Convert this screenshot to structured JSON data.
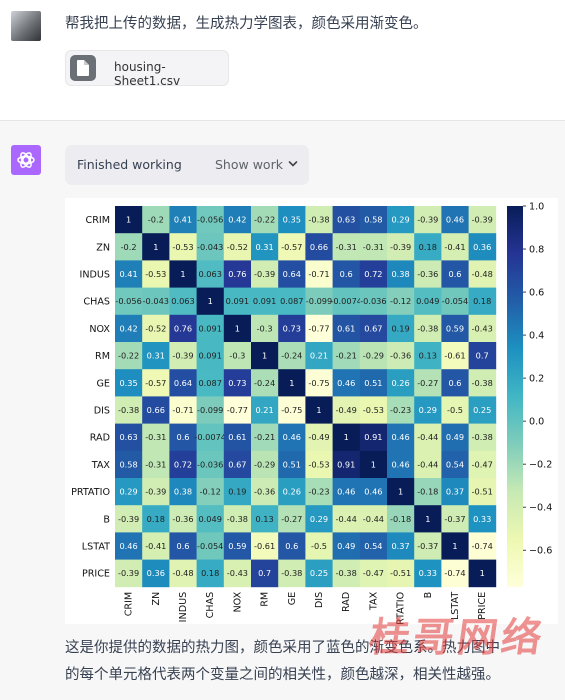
{
  "user": {
    "message": "帮我把上传的数据，生成热力学图表，颜色采用渐变色。",
    "file_name": "housing-Sheet1.csv"
  },
  "assistant": {
    "status": "Finished working",
    "show_work_label": "Show work",
    "reply_line1": "这是你提供的数据的热力图，颜色采用了蓝色的渐变色系。热力图中",
    "reply_line2": "的每个单元格代表两个变量之间的相关性，颜色越深，相关性越强。"
  },
  "watermark": "桂哥网络",
  "chart_data": {
    "type": "heatmap",
    "variables": [
      "CRIM",
      "ZN",
      "INDUS",
      "CHAS",
      "NOX",
      "RM",
      "GE",
      "DIS",
      "RAD",
      "TAX",
      "PRTATIO",
      "B",
      "LSTAT",
      "PRICE"
    ],
    "cells": [
      [
        "1",
        "-0.2",
        "0.41",
        "-0.056",
        "0.42",
        "-0.22",
        "0.35",
        "-0.38",
        "0.63",
        "0.58",
        "0.29",
        "-0.39",
        "0.46",
        "-0.39"
      ],
      [
        "-0.2",
        "1",
        "-0.53",
        "-0.043",
        "-0.52",
        "0.31",
        "-0.57",
        "0.66",
        "-0.31",
        "-0.31",
        "-0.39",
        "0.18",
        "-0.41",
        "0.36"
      ],
      [
        "0.41",
        "-0.53",
        "1",
        "0.063",
        "0.76",
        "-0.39",
        "0.64",
        "-0.71",
        "0.6",
        "0.72",
        "0.38",
        "-0.36",
        "0.6",
        "-0.48"
      ],
      [
        "-0.056",
        "-0.043",
        "0.063",
        "1",
        "0.091",
        "0.091",
        "0.087",
        "-0.099",
        "-0.0074",
        "-0.036",
        "-0.12",
        "0.049",
        "-0.054",
        "0.18"
      ],
      [
        "0.42",
        "-0.52",
        "0.76",
        "0.091",
        "1",
        "-0.3",
        "0.73",
        "-0.77",
        "0.61",
        "0.67",
        "0.19",
        "-0.38",
        "0.59",
        "-0.43"
      ],
      [
        "-0.22",
        "0.31",
        "-0.39",
        "0.091",
        "-0.3",
        "1",
        "-0.24",
        "0.21",
        "-0.21",
        "-0.29",
        "-0.36",
        "0.13",
        "-0.61",
        "0.7"
      ],
      [
        "0.35",
        "-0.57",
        "0.64",
        "0.087",
        "0.73",
        "-0.24",
        "1",
        "-0.75",
        "0.46",
        "0.51",
        "0.26",
        "-0.27",
        "0.6",
        "-0.38"
      ],
      [
        "-0.38",
        "0.66",
        "-0.71",
        "-0.099",
        "-0.77",
        "0.21",
        "-0.75",
        "1",
        "-0.49",
        "-0.53",
        "-0.23",
        "0.29",
        "-0.5",
        "0.25"
      ],
      [
        "0.63",
        "-0.31",
        "0.6",
        "-0.0074",
        "0.61",
        "-0.21",
        "0.46",
        "-0.49",
        "1",
        "0.91",
        "0.46",
        "-0.44",
        "0.49",
        "-0.38"
      ],
      [
        "0.58",
        "-0.31",
        "0.72",
        "-0.036",
        "0.67",
        "-0.29",
        "0.51",
        "-0.53",
        "0.91",
        "1",
        "0.46",
        "-0.44",
        "0.54",
        "-0.47"
      ],
      [
        "0.29",
        "-0.39",
        "0.38",
        "-0.12",
        "0.19",
        "-0.36",
        "0.26",
        "-0.23",
        "0.46",
        "0.46",
        "1",
        "-0.18",
        "0.37",
        "-0.51"
      ],
      [
        "-0.39",
        "0.18",
        "-0.36",
        "0.049",
        "-0.38",
        "0.13",
        "-0.27",
        "0.29",
        "-0.44",
        "-0.44",
        "-0.18",
        "1",
        "-0.37",
        "0.33"
      ],
      [
        "0.46",
        "-0.41",
        "0.6",
        "-0.054",
        "0.59",
        "-0.61",
        "0.6",
        "-0.5",
        "0.49",
        "0.54",
        "0.37",
        "-0.37",
        "1",
        "-0.74"
      ],
      [
        "-0.39",
        "0.36",
        "-0.48",
        "0.18",
        "-0.43",
        "0.7",
        "-0.38",
        "0.25",
        "-0.38",
        "-0.47",
        "-0.51",
        "0.33",
        "-0.74",
        "1"
      ]
    ],
    "colorbar_ticks": [
      "1.0",
      "0.8",
      "0.6",
      "0.4",
      "0.2",
      "0.0",
      "−0.2",
      "−0.4",
      "−0.6"
    ],
    "colormap": "YlGnBu",
    "vrange": [
      -0.77,
      1.0
    ]
  }
}
